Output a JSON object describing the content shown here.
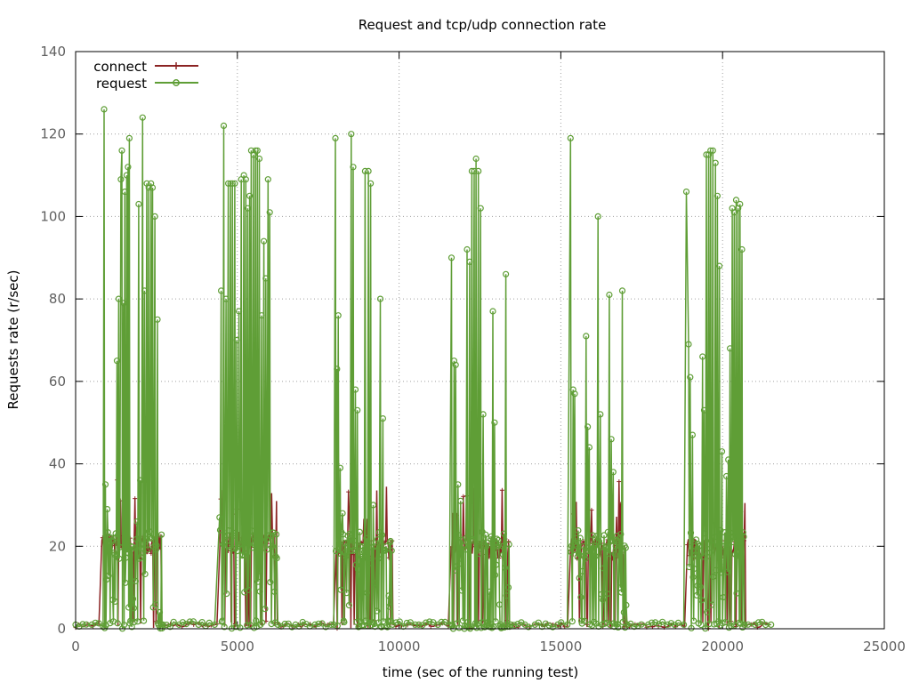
{
  "chart_data": {
    "type": "line",
    "title": "Request and tcp/udp connection rate",
    "xlabel": "time (sec of the running test)",
    "ylabel": "Requests rate (r/sec)",
    "xlim": [
      0,
      25000
    ],
    "ylim": [
      0,
      140
    ],
    "x_ticks": [
      "0",
      "5000",
      "10000",
      "15000",
      "20000",
      "25000"
    ],
    "y_ticks": [
      "0",
      "20",
      "40",
      "60",
      "80",
      "100",
      "120",
      "140"
    ],
    "grid": true,
    "legend_position": "top-left",
    "series": [
      {
        "name": "connect",
        "color": "#8b2323",
        "marker": "plus",
        "bursts": [
          {
            "x_start": 800,
            "x_end": 2650,
            "level": 21
          },
          {
            "x_start": 4450,
            "x_end": 6250,
            "level": 21
          },
          {
            "x_start": 8000,
            "x_end": 9800,
            "level": 20
          },
          {
            "x_start": 11600,
            "x_end": 13400,
            "level": 20
          },
          {
            "x_start": 15300,
            "x_end": 17000,
            "level": 20
          },
          {
            "x_start": 18900,
            "x_end": 20700,
            "level": 20
          }
        ],
        "baseline": 1,
        "x_max": 21500
      },
      {
        "name": "request",
        "color": "#5f9e36",
        "marker": "circle",
        "points": [
          [
            0,
            1
          ],
          [
            500,
            1
          ],
          [
            850,
            0.5
          ],
          [
            880,
            126
          ],
          [
            920,
            35
          ],
          [
            980,
            29
          ],
          [
            1050,
            22
          ],
          [
            1150,
            7
          ],
          [
            1280,
            65
          ],
          [
            1330,
            80
          ],
          [
            1400,
            109
          ],
          [
            1430,
            116
          ],
          [
            1480,
            79
          ],
          [
            1520,
            106
          ],
          [
            1580,
            110
          ],
          [
            1620,
            112
          ],
          [
            1660,
            119
          ],
          [
            1720,
            20
          ],
          [
            1800,
            5
          ],
          [
            1900,
            26
          ],
          [
            1950,
            103
          ],
          [
            2000,
            36
          ],
          [
            2070,
            124
          ],
          [
            2130,
            82
          ],
          [
            2200,
            108
          ],
          [
            2260,
            107
          ],
          [
            2330,
            108
          ],
          [
            2380,
            107
          ],
          [
            2450,
            100
          ],
          [
            2530,
            75
          ],
          [
            2600,
            4
          ],
          [
            2700,
            1
          ],
          [
            3200,
            1
          ],
          [
            3800,
            1
          ],
          [
            4300,
            1
          ],
          [
            4450,
            27
          ],
          [
            4500,
            82
          ],
          [
            4580,
            122
          ],
          [
            4650,
            80
          ],
          [
            4720,
            108
          ],
          [
            4790,
            108
          ],
          [
            4850,
            108
          ],
          [
            4920,
            108
          ],
          [
            4980,
            70
          ],
          [
            5050,
            77
          ],
          [
            5120,
            109
          ],
          [
            5200,
            110
          ],
          [
            5260,
            109
          ],
          [
            5320,
            102
          ],
          [
            5380,
            105
          ],
          [
            5430,
            116
          ],
          [
            5500,
            115
          ],
          [
            5560,
            116
          ],
          [
            5620,
            116
          ],
          [
            5680,
            114
          ],
          [
            5750,
            76
          ],
          [
            5820,
            94
          ],
          [
            5880,
            85
          ],
          [
            5950,
            109
          ],
          [
            6000,
            101
          ],
          [
            6080,
            20
          ],
          [
            6150,
            9
          ],
          [
            6250,
            1
          ],
          [
            6800,
            1
          ],
          [
            7400,
            1
          ],
          [
            7900,
            1
          ],
          [
            7980,
            1
          ],
          [
            8030,
            119
          ],
          [
            8080,
            63
          ],
          [
            8120,
            76
          ],
          [
            8180,
            39
          ],
          [
            8250,
            28
          ],
          [
            8400,
            20
          ],
          [
            8520,
            120
          ],
          [
            8580,
            112
          ],
          [
            8650,
            58
          ],
          [
            8710,
            53
          ],
          [
            8800,
            20
          ],
          [
            8950,
            111
          ],
          [
            9050,
            111
          ],
          [
            9120,
            108
          ],
          [
            9200,
            30
          ],
          [
            9300,
            20
          ],
          [
            9420,
            80
          ],
          [
            9500,
            51
          ],
          [
            9600,
            20
          ],
          [
            9680,
            8
          ],
          [
            9800,
            1
          ],
          [
            10500,
            1
          ],
          [
            11200,
            1
          ],
          [
            11550,
            1
          ],
          [
            11620,
            90
          ],
          [
            11700,
            65
          ],
          [
            11750,
            64
          ],
          [
            11820,
            35
          ],
          [
            11900,
            31
          ],
          [
            12000,
            20
          ],
          [
            12100,
            92
          ],
          [
            12180,
            89
          ],
          [
            12250,
            111
          ],
          [
            12320,
            111
          ],
          [
            12380,
            114
          ],
          [
            12450,
            111
          ],
          [
            12520,
            102
          ],
          [
            12600,
            52
          ],
          [
            12700,
            20
          ],
          [
            12800,
            9
          ],
          [
            12900,
            77
          ],
          [
            12950,
            50
          ],
          [
            13050,
            20
          ],
          [
            13200,
            20
          ],
          [
            13300,
            86
          ],
          [
            13380,
            10
          ],
          [
            13450,
            1
          ],
          [
            14200,
            1
          ],
          [
            14900,
            1
          ],
          [
            15200,
            1
          ],
          [
            15300,
            119
          ],
          [
            15380,
            58
          ],
          [
            15430,
            57
          ],
          [
            15500,
            20
          ],
          [
            15600,
            22
          ],
          [
            15700,
            20
          ],
          [
            15780,
            71
          ],
          [
            15830,
            49
          ],
          [
            15880,
            44
          ],
          [
            15950,
            20
          ],
          [
            16050,
            20
          ],
          [
            16150,
            100
          ],
          [
            16220,
            52
          ],
          [
            16300,
            7
          ],
          [
            16400,
            20
          ],
          [
            16500,
            81
          ],
          [
            16560,
            46
          ],
          [
            16620,
            38
          ],
          [
            16700,
            20
          ],
          [
            16800,
            21
          ],
          [
            16900,
            82
          ],
          [
            16950,
            4
          ],
          [
            17050,
            1
          ],
          [
            17700,
            1
          ],
          [
            18300,
            1
          ],
          [
            18800,
            1
          ],
          [
            18880,
            106
          ],
          [
            18950,
            69
          ],
          [
            19000,
            61
          ],
          [
            19070,
            47
          ],
          [
            19150,
            20
          ],
          [
            19280,
            20
          ],
          [
            19380,
            66
          ],
          [
            19430,
            53
          ],
          [
            19500,
            115
          ],
          [
            19570,
            115
          ],
          [
            19630,
            116
          ],
          [
            19700,
            116
          ],
          [
            19780,
            113
          ],
          [
            19840,
            105
          ],
          [
            19900,
            88
          ],
          [
            19980,
            43
          ],
          [
            20050,
            20
          ],
          [
            20120,
            37
          ],
          [
            20180,
            41
          ],
          [
            20230,
            68
          ],
          [
            20300,
            102
          ],
          [
            20360,
            101
          ],
          [
            20420,
            104
          ],
          [
            20480,
            102
          ],
          [
            20540,
            103
          ],
          [
            20600,
            92
          ],
          [
            20680,
            1
          ],
          [
            21000,
            1
          ],
          [
            21500,
            1
          ]
        ]
      }
    ]
  }
}
